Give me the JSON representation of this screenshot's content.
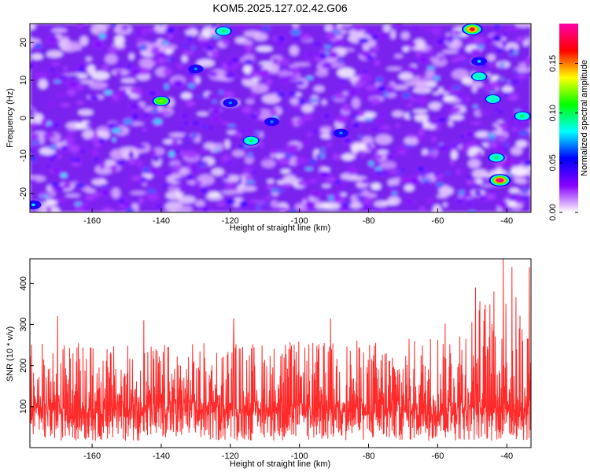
{
  "title": "KOM5.2025.127.02.42.G06",
  "chart_data": [
    {
      "type": "heatmap",
      "xlabel": "Height of straight line (km)",
      "ylabel": "Frequency (Hz)",
      "xlim": [
        -178,
        -33
      ],
      "ylim": [
        -25,
        25
      ],
      "xticks": [
        "-160",
        "-140",
        "-120",
        "-100",
        "-80",
        "-60",
        "-40"
      ],
      "yticks": [
        "-20",
        "-10",
        "0",
        "10",
        "20"
      ],
      "colorbar": {
        "label": "Normalized spectral amplitude",
        "range": [
          0,
          0.19
        ],
        "ticks": [
          "0.00",
          "0.05",
          "0.10",
          "0.15"
        ],
        "colormap": [
          "#ffffff",
          "#8800ff",
          "#0000ff",
          "#00ffff",
          "#00ff00",
          "#ffff00",
          "#ff0000",
          "#ff00aa"
        ]
      },
      "hotspots": [
        {
          "x": -42,
          "y": -16.5,
          "value": 0.19
        },
        {
          "x": -35.5,
          "y": 0.5,
          "value": 0.1
        },
        {
          "x": -50,
          "y": 23.5,
          "value": 0.17
        },
        {
          "x": -122,
          "y": 23,
          "value": 0.1
        },
        {
          "x": -140,
          "y": 4.5,
          "value": 0.12
        },
        {
          "x": -114,
          "y": -6,
          "value": 0.1
        },
        {
          "x": -43,
          "y": -10.5,
          "value": 0.1
        },
        {
          "x": -44,
          "y": 5,
          "value": 0.09
        },
        {
          "x": -48,
          "y": 11,
          "value": 0.09
        },
        {
          "x": -48,
          "y": 15,
          "value": 0.08
        },
        {
          "x": -108,
          "y": -1,
          "value": 0.07
        },
        {
          "x": -88,
          "y": -4,
          "value": 0.07
        },
        {
          "x": -130,
          "y": 13,
          "value": 0.07
        },
        {
          "x": -120,
          "y": 4,
          "value": 0.07
        },
        {
          "x": -177,
          "y": -23,
          "value": 0.08
        }
      ]
    },
    {
      "type": "line",
      "xlabel": "Height of straight line (km)",
      "ylabel": "SNR (10 * v/v)",
      "xlim": [
        -178,
        -33
      ],
      "ylim": [
        0,
        460
      ],
      "xticks": [
        "-160",
        "-140",
        "-120",
        "-100",
        "-80",
        "-60",
        "-40"
      ],
      "yticks": [
        "100",
        "200",
        "300",
        "400"
      ],
      "series": [
        {
          "color": "#ff2a2a",
          "baseline": 110,
          "envelope": [
            {
              "x": -178,
              "y": 260
            },
            {
              "x": -150,
              "y": 250
            },
            {
              "x": -120,
              "y": 260
            },
            {
              "x": -90,
              "y": 260
            },
            {
              "x": -65,
              "y": 270
            },
            {
              "x": -55,
              "y": 320
            },
            {
              "x": -48,
              "y": 370
            },
            {
              "x": -40,
              "y": 400
            },
            {
              "x": -33,
              "y": 340
            }
          ],
          "peaks": [
            {
              "x": -170,
              "y": 320
            },
            {
              "x": -145,
              "y": 310
            },
            {
              "x": -119,
              "y": 315
            },
            {
              "x": -91,
              "y": 315
            },
            {
              "x": -49,
              "y": 390
            },
            {
              "x": -41,
              "y": 460
            },
            {
              "x": -38.5,
              "y": 440
            },
            {
              "x": -33.5,
              "y": 440
            }
          ]
        }
      ]
    }
  ]
}
